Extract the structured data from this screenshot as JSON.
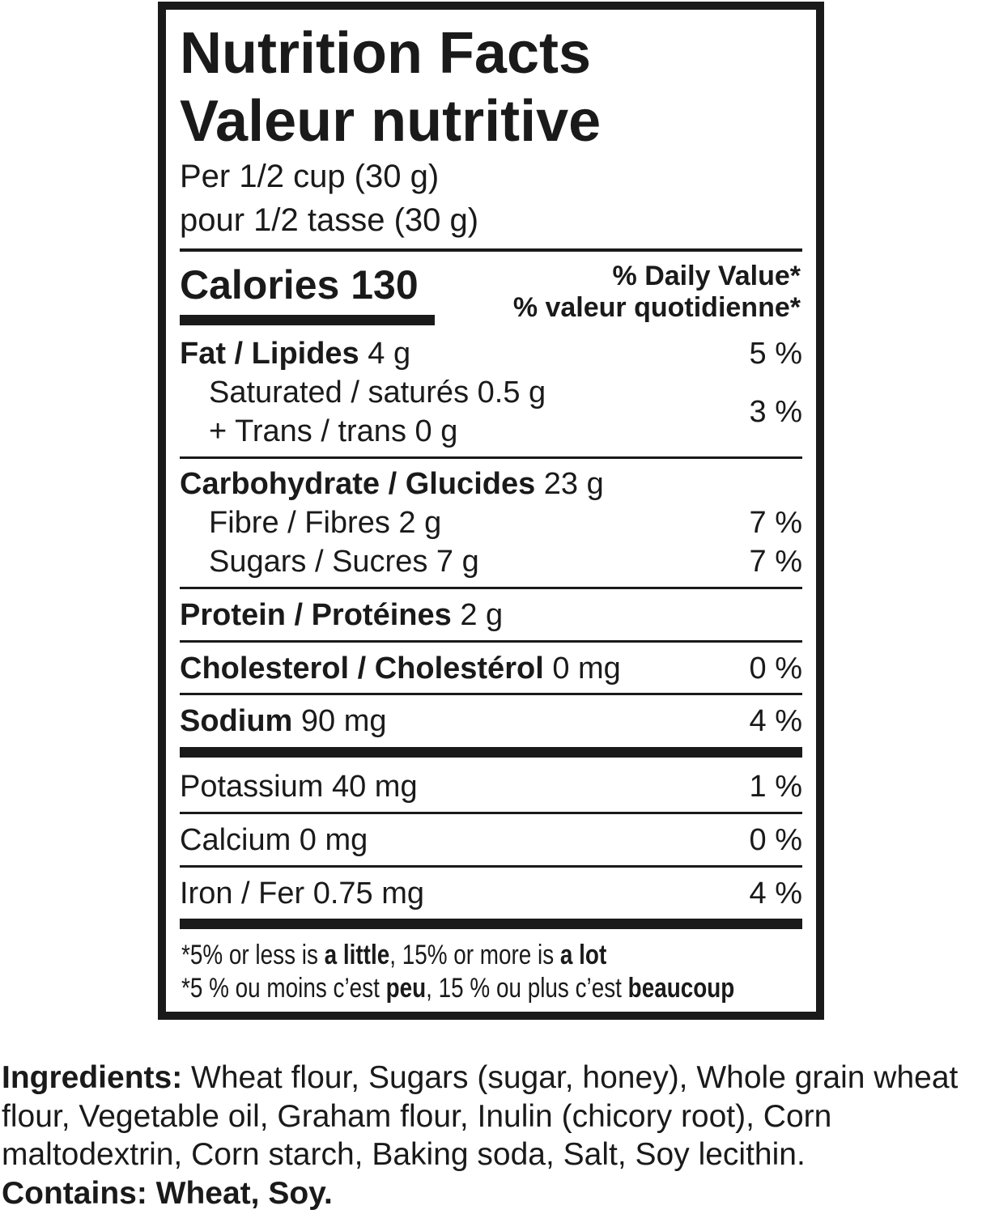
{
  "label": {
    "title_en": "Nutrition Facts",
    "title_fr": "Valeur nutritive",
    "serving_en": "Per 1/2 cup (30 g)",
    "serving_fr": "pour 1/2 tasse (30 g)",
    "calories_label": "Calories",
    "calories_value": "130",
    "dv_en": "% Daily Value*",
    "dv_fr": "% valeur quotidienne*",
    "rows": [
      {
        "name": "Fat / Lipides",
        "amount": "4 g",
        "dv": "5 %"
      },
      {
        "name": "Saturated / saturés",
        "amount": "0.5 g"
      },
      {
        "name": "+ Trans / trans",
        "amount": "0 g",
        "dv": "3 %"
      },
      {
        "name": "Carbohydrate / Glucides",
        "amount": "23 g"
      },
      {
        "name": "Fibre / Fibres",
        "amount": "2 g",
        "dv": "7 %"
      },
      {
        "name": "Sugars / Sucres",
        "amount": "7 g",
        "dv": "7 %"
      },
      {
        "name": "Protein / Protéines",
        "amount": "2 g"
      },
      {
        "name": "Cholesterol / Cholestérol",
        "amount": "0 mg",
        "dv": "0 %"
      },
      {
        "name": "Sodium",
        "amount": "90 mg",
        "dv": "4 %"
      },
      {
        "name": "Potassium 40 mg",
        "dv": "1 %"
      },
      {
        "name": "Calcium 0 mg",
        "dv": "0 %"
      },
      {
        "name": "Iron / Fer 0.75 mg",
        "dv": "4 %"
      }
    ],
    "footnote_en": {
      "a": "*5% or less is ",
      "b": "a little",
      "c": ", 15% or more is ",
      "d": "a lot"
    },
    "footnote_fr": {
      "a": "*5 % ou moins c’est ",
      "b": "peu",
      "c": ", 15 % ou plus c’est ",
      "d": "beaucoup"
    }
  },
  "ingredients": {
    "label": "Ingredients:",
    "text": " Wheat flour, Sugars (sugar, honey), Whole grain wheat flour, Vegetable oil, Graham flour, Inulin (chicory root), Corn maltodextrin, Corn starch, Baking soda, Salt, Soy lecithin.",
    "contains": "Contains: Wheat, Soy."
  }
}
